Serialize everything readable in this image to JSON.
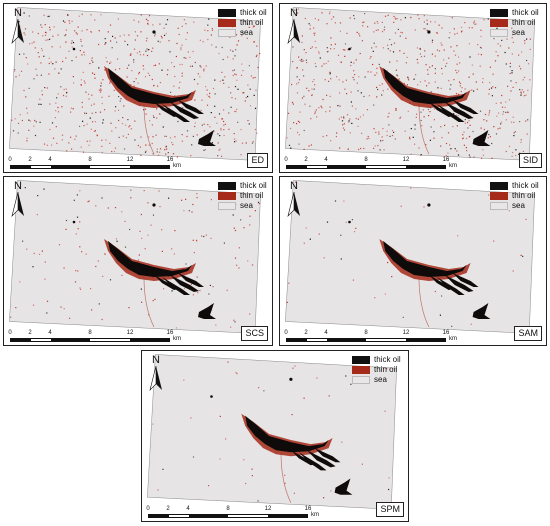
{
  "legend": {
    "items": [
      {
        "label": "thick oil",
        "color": "#111111"
      },
      {
        "label": "thin oil",
        "color": "#a62a1a"
      },
      {
        "label": "sea",
        "color": "#e8e6e6"
      }
    ]
  },
  "north_label": "N",
  "scale": {
    "ticks": [
      "0",
      "2",
      "4",
      "8",
      "12",
      "16"
    ],
    "unit": "km"
  },
  "panels": [
    {
      "id": "ed",
      "tag": "ED",
      "noise": "high"
    },
    {
      "id": "sid",
      "tag": "SID",
      "noise": "high"
    },
    {
      "id": "scs",
      "tag": "SCS",
      "noise": "low"
    },
    {
      "id": "sam",
      "tag": "SAM",
      "noise": "very-low"
    },
    {
      "id": "spm",
      "tag": "SPM",
      "noise": "very-low"
    }
  ],
  "colors": {
    "sea": "#e6e4e4",
    "thick_oil": "#0f0b0a",
    "thin_oil": "#a52a1a",
    "noise": "#c0302a"
  }
}
